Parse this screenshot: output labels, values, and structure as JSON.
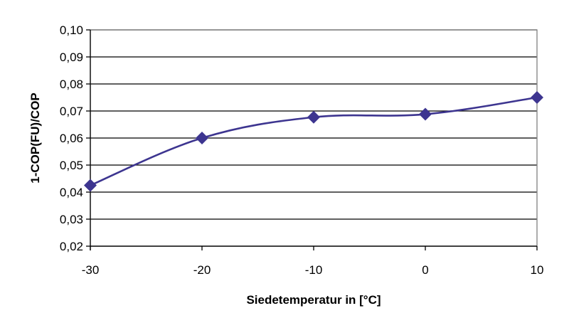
{
  "chart_data": {
    "type": "line",
    "title": "",
    "xlabel": "Siedetemperatur in [°C]",
    "ylabel": "1-COP(FU)/COP",
    "xlim": [
      -30,
      10
    ],
    "ylim": [
      0.02,
      0.1
    ],
    "x_ticks": [
      -30,
      -20,
      -10,
      0,
      10
    ],
    "x_tick_labels": [
      "-30",
      "-20",
      "-10",
      "0",
      "10"
    ],
    "y_ticks": [
      0.02,
      0.03,
      0.04,
      0.05,
      0.06,
      0.07,
      0.08,
      0.09,
      0.1
    ],
    "y_tick_labels": [
      "0,02",
      "0,03",
      "0,04",
      "0,05",
      "0,06",
      "0,07",
      "0,08",
      "0,09",
      "0,10"
    ],
    "grid": "horizontal",
    "legend": "none",
    "series": [
      {
        "x": [
          -30,
          -20,
          -10,
          0,
          10
        ],
        "values": [
          0.0425,
          0.06,
          0.0677,
          0.0688,
          0.075
        ],
        "color": "#3d3590",
        "marker": "diamond",
        "smooth": true
      }
    ]
  }
}
